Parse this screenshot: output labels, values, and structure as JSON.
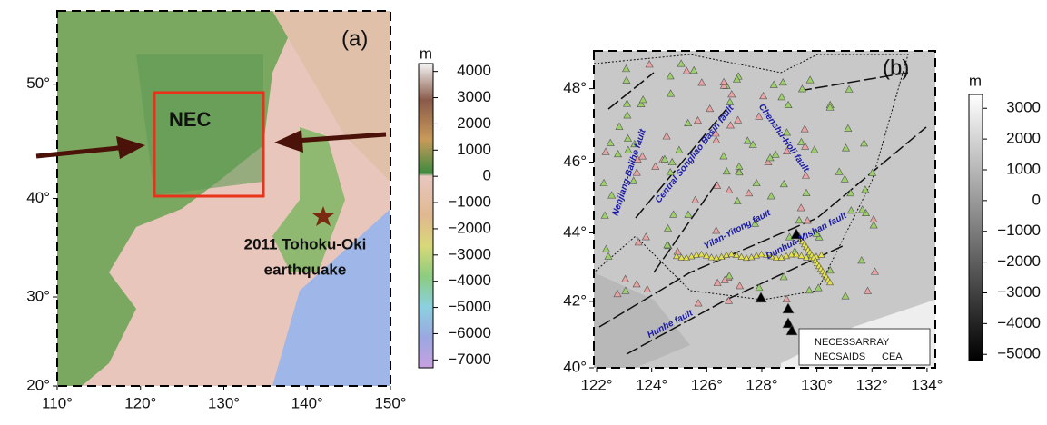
{
  "panel_a": {
    "label": "(a)",
    "lon_lim": [
      110,
      150
    ],
    "lat_lim": [
      20,
      55.5
    ],
    "lon_ticks": [
      {
        "value": 110,
        "label": "110°"
      },
      {
        "value": 120,
        "label": "120°"
      },
      {
        "value": 130,
        "label": "130°"
      },
      {
        "value": 140,
        "label": "140°"
      },
      {
        "value": 150,
        "label": "150°"
      }
    ],
    "lat_ticks": [
      {
        "value": 20,
        "label": "20°"
      },
      {
        "value": 30,
        "label": "30°"
      },
      {
        "value": 40,
        "label": "40°"
      },
      {
        "value": 50,
        "label": "50°"
      }
    ],
    "region_label": "NEC",
    "event_label": [
      "2011 Tohoku-Oki",
      "earthquake"
    ],
    "colorbar": {
      "unit": "m",
      "lim": [
        -7300,
        4300
      ],
      "ticks": [
        4000,
        3000,
        2000,
        1000,
        0,
        {
          "value": -1000,
          "label": "−1000"
        },
        {
          "value": -2000,
          "label": "−2000"
        },
        {
          "value": -3000,
          "label": "−3000"
        },
        {
          "value": -4000,
          "label": "−4000"
        },
        {
          "value": -5000,
          "label": "−5000"
        },
        {
          "value": -6000,
          "label": "−6000"
        },
        {
          "value": -7000,
          "label": "−7000"
        }
      ]
    }
  },
  "panel_b": {
    "label": "(b)",
    "lon_lim": [
      121.9,
      134.3
    ],
    "lat_lim": [
      40,
      49
    ],
    "lon_ticks": [
      {
        "value": 122,
        "label": "122°"
      },
      {
        "value": 124,
        "label": "124°"
      },
      {
        "value": 126,
        "label": "126°"
      },
      {
        "value": 128,
        "label": "128°"
      },
      {
        "value": 130,
        "label": "130°"
      },
      {
        "value": 132,
        "label": "132°"
      },
      {
        "value": 134,
        "label": "134°"
      }
    ],
    "lat_ticks": [
      {
        "value": 40,
        "label": "40°"
      },
      {
        "value": 42,
        "label": "42°"
      },
      {
        "value": 44,
        "label": "44°"
      },
      {
        "value": 46,
        "label": "46°"
      },
      {
        "value": 48,
        "label": "48°"
      }
    ],
    "faults": [
      "Nenjiang-Balihe fault",
      "Central Songliao Basin fault",
      "Chenshu-Holi fault",
      "Yilan-Yitong fault",
      "Dunhua-Mishan fault",
      "Hunhe fault"
    ],
    "legend": [
      {
        "name": "NECESSARRAY",
        "color": "#9ccf6a"
      },
      {
        "name": "NECSAIDS",
        "color": "#e6e24a"
      },
      {
        "name": "CEA",
        "color": "#e9a3a3"
      }
    ],
    "colorbar": {
      "unit": "m",
      "lim": [
        -5200,
        3450
      ],
      "ticks": [
        3000,
        2000,
        1000,
        0,
        {
          "value": -1000,
          "label": "−1000"
        },
        {
          "value": -2000,
          "label": "−2000"
        },
        {
          "value": -3000,
          "label": "−3000"
        },
        {
          "value": -4000,
          "label": "−4000"
        },
        {
          "value": -5000,
          "label": "−5000"
        }
      ]
    }
  }
}
